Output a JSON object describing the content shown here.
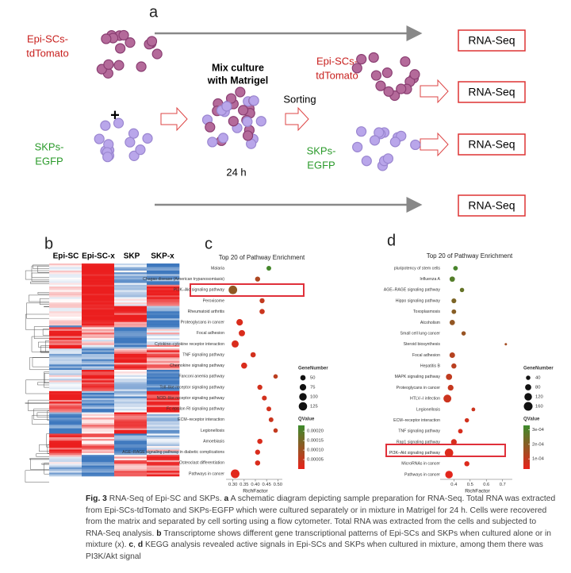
{
  "panel_labels": [
    "a",
    "b",
    "c",
    "d"
  ],
  "schematic": {
    "epi_top": [
      "Epi-SCs-",
      "tdTomato"
    ],
    "plus": "+",
    "skp_left": [
      "SKPs-",
      "EGFP"
    ],
    "mix": [
      "Mix culture",
      "with Matrigel"
    ],
    "time": "24 h",
    "sorting": "Sorting",
    "epi_right": [
      "Epi-SCs-",
      "tdTomato"
    ],
    "skp_right": [
      "SKPs-",
      "EGFP"
    ],
    "rnaseq": [
      "RNA-Seq",
      "RNA-Seq",
      "RNA-Seq",
      "RNA-Seq"
    ]
  },
  "heatmap": {
    "columns": [
      "Epi-SC",
      "Epi-SC-x",
      "SKP",
      "SKP-x"
    ]
  },
  "chart_data": [
    {
      "type": "dotplot",
      "title": "Top 20 of Pathway Enrichment",
      "xlabel": "RichFactor",
      "categories": [
        "Malaria",
        "Chagas disease (American trypanosomiasis)",
        "PI3K–Akt signaling pathway",
        "Peroxisome",
        "Rheumatoid arthritis",
        "Proteoglycans in cancer",
        "Focal adhesion",
        "Cytokine–cytokine receptor interaction",
        "TNF signaling pathway",
        "Chemokine signaling pathway",
        "Fanconi anemia pathway",
        "Toll–like receptor signaling pathway",
        "NOD–like receptor signaling pathway",
        "Fc epsilon RI signaling pathway",
        "ECM–receptor interaction",
        "Legionellosis",
        "Amoebiasis",
        "AGE–RAGE signaling pathway in diabetic complications",
        "Osteoclast differentiation",
        "Pathways in cancer"
      ],
      "values": [
        0.46,
        0.41,
        0.3,
        0.43,
        0.43,
        0.33,
        0.34,
        0.31,
        0.39,
        0.35,
        0.49,
        0.42,
        0.44,
        0.46,
        0.47,
        0.49,
        0.42,
        0.41,
        0.41,
        0.31
      ],
      "sizes": [
        40,
        45,
        130,
        45,
        48,
        75,
        70,
        90,
        50,
        65,
        35,
        45,
        42,
        40,
        40,
        35,
        48,
        45,
        48,
        135
      ],
      "qvalues": [
        0.00022,
        8e-05,
        0.00012,
        5e-05,
        4e-05,
        2e-05,
        2e-05,
        2e-05,
        3e-05,
        2e-05,
        6e-05,
        3e-05,
        3e-05,
        3e-05,
        4e-05,
        5e-05,
        2e-05,
        2e-05,
        2e-05,
        1e-05
      ],
      "xlim": [
        0.28,
        0.52
      ],
      "xticks": [
        {
          "value": 0.3,
          "label": "0.30"
        },
        0.35,
        {
          "value": 0.4,
          "label": "0.40"
        },
        0.45,
        {
          "value": 0.5,
          "label": "0.50"
        }
      ],
      "size_title": "GeneNumber",
      "sizelim": [
        0,
        135
      ],
      "size_ticks": [
        50,
        75,
        100,
        125
      ],
      "color_title": "QValue",
      "colorlim": [
        0,
        0.00023
      ],
      "color_ticks": [
        {
          "value": 0.0002,
          "label": "0.00020"
        },
        {
          "value": 0.00015,
          "label": "0.00015"
        },
        {
          "value": 0.0001,
          "label": "0.00010"
        },
        {
          "value": 5e-05,
          "label": "0.00005"
        }
      ],
      "color_low": "#e8231b",
      "color_high": "#3d8b2c"
    },
    {
      "type": "dotplot",
      "title": "Top 20 of Pathway Enrichment",
      "xlabel": "RichFactor",
      "categories": [
        "pluripotency of stem cells",
        "Influenza A",
        "AGE–RAGE signaling pathway",
        "Hippo signaling pathway",
        "Toxoplasmosis",
        "Alcoholism",
        "Small cell lung cancer",
        "Steroid biosynthesis",
        "Focal adhesion",
        "Hepatitis B",
        "MAPK signaling pathway",
        "Proteoglycans in cancer",
        "HTLV–I infection",
        "Legionellosis",
        "ECM–receptor interaction",
        "TNF signaling pathway",
        "Rap1 signaling pathway",
        "PI3K–Akt signaling pathway",
        "MicroRNAs in cancer",
        "Pathways in cancer"
      ],
      "values": [
        0.41,
        0.39,
        0.45,
        0.4,
        0.4,
        0.39,
        0.46,
        0.72,
        0.39,
        0.4,
        0.37,
        0.38,
        0.36,
        0.52,
        0.48,
        0.44,
        0.4,
        0.37,
        0.48,
        0.37
      ],
      "sizes": [
        45,
        60,
        40,
        50,
        45,
        60,
        40,
        12,
        65,
        55,
        80,
        70,
        130,
        30,
        40,
        45,
        70,
        150,
        55,
        120
      ],
      "qvalues": [
        0.00031,
        0.00029,
        0.00026,
        0.00022,
        0.0002,
        0.00018,
        0.00017,
        0.00015,
        0.00012,
        0.00011,
        0.0001,
        9e-05,
        8e-05,
        8e-05,
        7e-05,
        6e-05,
        6e-05,
        5e-05,
        5e-05,
        4e-05
      ],
      "xlim": [
        0.33,
        0.76
      ],
      "xticks": [
        0.4,
        0.5,
        0.6,
        0.7
      ],
      "size_title": "GeneNumber",
      "sizelim": [
        0,
        160
      ],
      "size_ticks": [
        40,
        80,
        120,
        160
      ],
      "color_title": "QValue",
      "colorlim": [
        3e-05,
        0.00033
      ],
      "color_ticks": [
        {
          "value": 0.0003,
          "label": "3e-04"
        },
        {
          "value": 0.0002,
          "label": "2e-04"
        },
        {
          "value": 0.0001,
          "label": "1e-04"
        }
      ],
      "color_low": "#e8231b",
      "color_high": "#3d8b2c"
    }
  ],
  "caption": [
    "Fig. 3",
    " RNA-Seq of Epi-SC and SKPs. ",
    "a",
    " A schematic diagram depicting sample preparation for RNA-Seq. Total RNA was extracted from Epi-SCs-tdTomato and SKPs-EGFP which were cultured separately or in mixture in Matrigel for 24 h. Cells were recovered from the matrix and separated by cell sorting using a flow cytometer. Total RNA was extracted from the cells and subjected to RNA-Seq analysis. ",
    "b",
    " Transcriptome shows different gene transcriptional patterns of Epi-SCs and SKPs when cultured alone or in mixture (x). ",
    "c",
    ", ",
    "d",
    " KEGG analysis revealed active signals in Epi-SCs and SKPs when cultured in mixture, among them there was PI3K/Akt signal"
  ]
}
